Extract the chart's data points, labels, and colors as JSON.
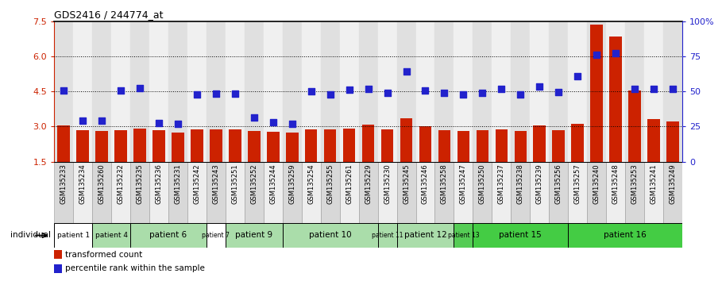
{
  "title": "GDS2416 / 244774_at",
  "samples": [
    "GSM135233",
    "GSM135234",
    "GSM135260",
    "GSM135232",
    "GSM135235",
    "GSM135236",
    "GSM135231",
    "GSM135242",
    "GSM135243",
    "GSM135251",
    "GSM135252",
    "GSM135244",
    "GSM135259",
    "GSM135254",
    "GSM135255",
    "GSM135261",
    "GSM135229",
    "GSM135230",
    "GSM135245",
    "GSM135246",
    "GSM135258",
    "GSM135247",
    "GSM135250",
    "GSM135237",
    "GSM135238",
    "GSM135239",
    "GSM135256",
    "GSM135257",
    "GSM135240",
    "GSM135248",
    "GSM135253",
    "GSM135241",
    "GSM135249"
  ],
  "bar_values": [
    3.05,
    2.85,
    2.82,
    2.85,
    2.92,
    2.85,
    2.75,
    2.88,
    2.88,
    2.88,
    2.82,
    2.78,
    2.75,
    2.88,
    2.88,
    2.9,
    3.08,
    2.88,
    3.35,
    3.0,
    2.85,
    2.82,
    2.85,
    2.88,
    2.82,
    3.05,
    2.85,
    3.12,
    7.35,
    6.85,
    4.55,
    3.3,
    3.2
  ],
  "dot_values_left_scale": [
    4.55,
    3.25,
    3.25,
    4.55,
    4.65,
    3.15,
    3.1,
    4.35,
    4.4,
    4.4,
    3.38,
    3.18,
    3.12,
    4.5,
    4.35,
    4.58,
    4.62,
    4.42,
    5.35,
    4.55,
    4.45,
    4.35,
    4.42,
    4.6,
    4.35,
    4.7,
    4.48,
    5.15,
    6.05,
    6.12,
    4.62,
    4.62,
    4.62
  ],
  "bar_color": "#cc2200",
  "dot_color": "#2222cc",
  "left_yticks": [
    1.5,
    3.0,
    4.5,
    6.0,
    7.5
  ],
  "right_ytick_labels": [
    "0",
    "25",
    "50",
    "75",
    "100%"
  ],
  "right_ytick_vals": [
    0,
    25,
    50,
    75,
    100
  ],
  "ylim_left": [
    1.5,
    7.5
  ],
  "patients": [
    {
      "label": "patient 1",
      "start": 0,
      "end": 2,
      "color": "#ffffff"
    },
    {
      "label": "patient 4",
      "start": 2,
      "end": 4,
      "color": "#aaddaa"
    },
    {
      "label": "patient 6",
      "start": 4,
      "end": 8,
      "color": "#aaddaa"
    },
    {
      "label": "patient 7",
      "start": 8,
      "end": 9,
      "color": "#ffffff"
    },
    {
      "label": "patient 9",
      "start": 9,
      "end": 12,
      "color": "#aaddaa"
    },
    {
      "label": "patient 10",
      "start": 12,
      "end": 17,
      "color": "#aaddaa"
    },
    {
      "label": "patient 11",
      "start": 17,
      "end": 18,
      "color": "#aaddaa"
    },
    {
      "label": "patient 12",
      "start": 18,
      "end": 21,
      "color": "#aaddaa"
    },
    {
      "label": "patient 13",
      "start": 21,
      "end": 22,
      "color": "#55cc55"
    },
    {
      "label": "patient 15",
      "start": 22,
      "end": 27,
      "color": "#44cc44"
    },
    {
      "label": "patient 16",
      "start": 27,
      "end": 33,
      "color": "#44cc44"
    }
  ],
  "bar_width": 0.65,
  "dot_size": 28,
  "gridline_values": [
    3.0,
    4.5,
    6.0
  ],
  "legend_red_label": "transformed count",
  "legend_blue_label": "percentile rank within the sample"
}
